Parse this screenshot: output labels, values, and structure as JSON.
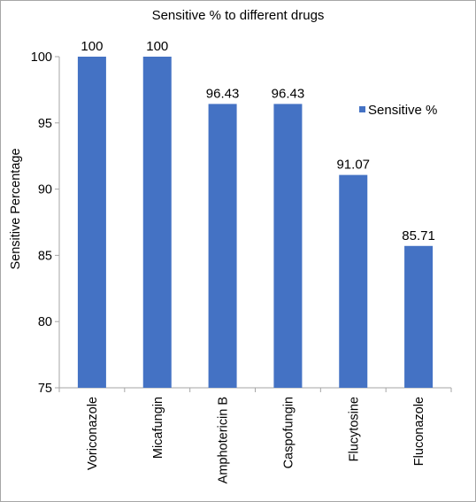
{
  "chart_data": {
    "type": "bar",
    "title": "Sensitive % to different drugs",
    "ylabel": "Sensitive Percentage",
    "xlabel": "",
    "categories": [
      "Voriconazole",
      "Micafungin",
      "Amphotericin B",
      "Caspofungin",
      "Flucytosine",
      "Fluconazole"
    ],
    "series": [
      {
        "name": "Sensitive %",
        "values": [
          100,
          100,
          96.43,
          96.43,
          91.07,
          85.71
        ],
        "labels": [
          "100",
          "100",
          "96.43",
          "96.43",
          "91.07",
          "85.71"
        ]
      }
    ],
    "ylim": [
      75,
      100
    ],
    "yticks": [
      "75",
      "80",
      "85",
      "90",
      "95",
      "100"
    ],
    "grid": false,
    "legend_position": "right",
    "bar_color": "#4472c4"
  }
}
